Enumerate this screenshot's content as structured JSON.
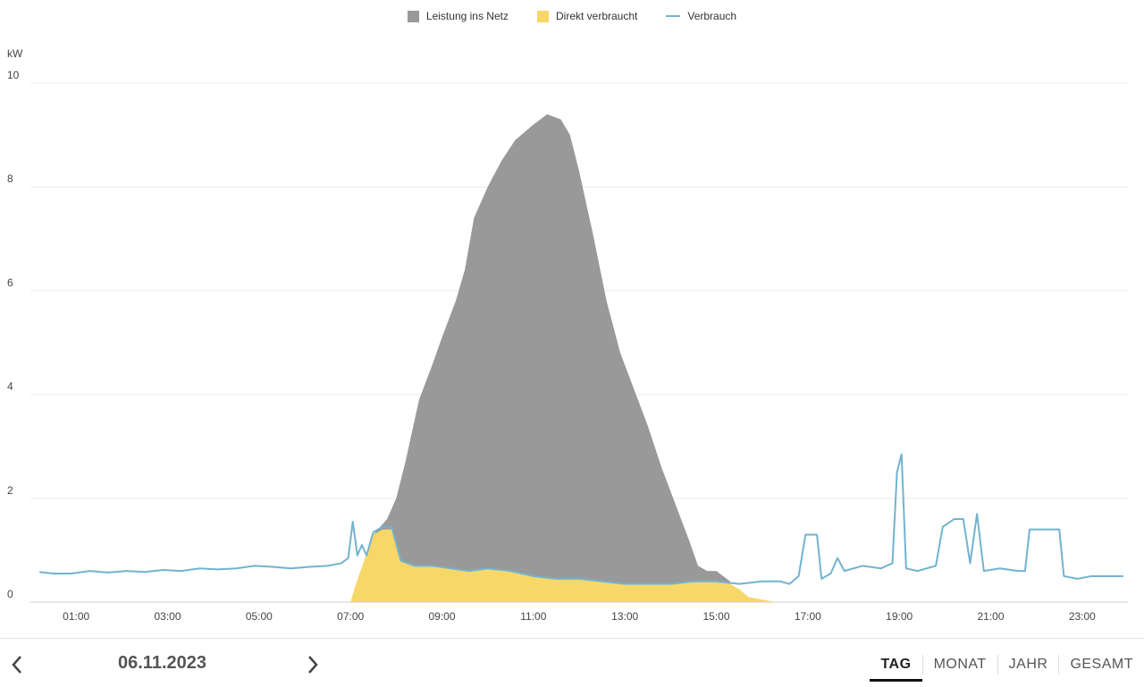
{
  "chart_data": {
    "type": "area",
    "ylabel": "kW",
    "ylim": [
      0,
      10
    ],
    "yticks": [
      "0",
      "2",
      "4",
      "6",
      "8",
      "10"
    ],
    "xlim": [
      0,
      24
    ],
    "xticks": [
      "01:00",
      "03:00",
      "05:00",
      "07:00",
      "09:00",
      "11:00",
      "13:00",
      "15:00",
      "17:00",
      "19:00",
      "21:00",
      "23:00"
    ],
    "grid": true,
    "legend_placement": "top-center",
    "series": [
      {
        "name": "Leistung ins Netz",
        "type": "area",
        "color": "#999999",
        "points": [
          [
            7.5,
            1.3
          ],
          [
            7.8,
            1.6
          ],
          [
            8.0,
            2.0
          ],
          [
            8.2,
            2.7
          ],
          [
            8.5,
            3.9
          ],
          [
            8.8,
            4.6
          ],
          [
            9.0,
            5.1
          ],
          [
            9.3,
            5.8
          ],
          [
            9.5,
            6.4
          ],
          [
            9.7,
            7.4
          ],
          [
            10.0,
            8.0
          ],
          [
            10.3,
            8.5
          ],
          [
            10.6,
            8.9
          ],
          [
            11.0,
            9.2
          ],
          [
            11.3,
            9.4
          ],
          [
            11.6,
            9.3
          ],
          [
            11.8,
            9.0
          ],
          [
            12.0,
            8.3
          ],
          [
            12.3,
            7.1
          ],
          [
            12.6,
            5.8
          ],
          [
            12.9,
            4.8
          ],
          [
            13.2,
            4.1
          ],
          [
            13.5,
            3.4
          ],
          [
            13.8,
            2.6
          ],
          [
            14.1,
            1.9
          ],
          [
            14.4,
            1.2
          ],
          [
            14.6,
            0.7
          ],
          [
            14.8,
            0.6
          ],
          [
            15.0,
            0.6
          ],
          [
            15.3,
            0.4
          ]
        ]
      },
      {
        "name": "Direkt verbraucht",
        "type": "area",
        "color": "#f7d768",
        "points": [
          [
            7.0,
            0.0
          ],
          [
            7.1,
            0.3
          ],
          [
            7.3,
            0.8
          ],
          [
            7.5,
            1.3
          ],
          [
            7.7,
            1.4
          ],
          [
            7.9,
            1.4
          ],
          [
            8.1,
            0.8
          ],
          [
            8.4,
            0.7
          ],
          [
            8.8,
            0.7
          ],
          [
            9.2,
            0.65
          ],
          [
            9.6,
            0.6
          ],
          [
            10.0,
            0.65
          ],
          [
            10.5,
            0.6
          ],
          [
            11.0,
            0.5
          ],
          [
            11.5,
            0.45
          ],
          [
            12.0,
            0.45
          ],
          [
            12.5,
            0.4
          ],
          [
            13.0,
            0.35
          ],
          [
            13.5,
            0.35
          ],
          [
            14.0,
            0.35
          ],
          [
            14.5,
            0.4
          ],
          [
            15.0,
            0.4
          ],
          [
            15.3,
            0.35
          ],
          [
            15.5,
            0.25
          ],
          [
            15.7,
            0.1
          ],
          [
            16.0,
            0.05
          ],
          [
            16.3,
            0.0
          ]
        ]
      },
      {
        "name": "Verbrauch",
        "type": "line",
        "color": "#73b3cf",
        "points": [
          [
            0.2,
            0.58
          ],
          [
            0.5,
            0.55
          ],
          [
            0.9,
            0.55
          ],
          [
            1.3,
            0.6
          ],
          [
            1.7,
            0.57
          ],
          [
            2.1,
            0.6
          ],
          [
            2.5,
            0.58
          ],
          [
            2.9,
            0.62
          ],
          [
            3.3,
            0.6
          ],
          [
            3.7,
            0.65
          ],
          [
            4.1,
            0.63
          ],
          [
            4.5,
            0.65
          ],
          [
            4.9,
            0.7
          ],
          [
            5.3,
            0.68
          ],
          [
            5.7,
            0.65
          ],
          [
            6.1,
            0.68
          ],
          [
            6.5,
            0.7
          ],
          [
            6.8,
            0.75
          ],
          [
            6.95,
            0.85
          ],
          [
            7.05,
            1.55
          ],
          [
            7.15,
            0.9
          ],
          [
            7.25,
            1.1
          ],
          [
            7.35,
            0.9
          ],
          [
            7.5,
            1.35
          ],
          [
            7.7,
            1.45
          ],
          [
            7.9,
            1.45
          ],
          [
            8.1,
            0.8
          ],
          [
            8.4,
            0.7
          ],
          [
            8.8,
            0.7
          ],
          [
            9.2,
            0.65
          ],
          [
            9.6,
            0.6
          ],
          [
            10.0,
            0.65
          ],
          [
            10.5,
            0.6
          ],
          [
            11.0,
            0.5
          ],
          [
            11.5,
            0.45
          ],
          [
            12.0,
            0.45
          ],
          [
            12.5,
            0.4
          ],
          [
            13.0,
            0.35
          ],
          [
            13.5,
            0.35
          ],
          [
            14.0,
            0.35
          ],
          [
            14.5,
            0.4
          ],
          [
            15.0,
            0.4
          ],
          [
            15.5,
            0.35
          ],
          [
            16.0,
            0.4
          ],
          [
            16.4,
            0.4
          ],
          [
            16.6,
            0.35
          ],
          [
            16.8,
            0.5
          ],
          [
            16.95,
            1.3
          ],
          [
            17.1,
            1.3
          ],
          [
            17.2,
            1.3
          ],
          [
            17.3,
            0.45
          ],
          [
            17.5,
            0.55
          ],
          [
            17.65,
            0.85
          ],
          [
            17.8,
            0.6
          ],
          [
            18.2,
            0.7
          ],
          [
            18.6,
            0.65
          ],
          [
            18.85,
            0.75
          ],
          [
            18.95,
            2.5
          ],
          [
            19.05,
            2.85
          ],
          [
            19.15,
            0.65
          ],
          [
            19.4,
            0.6
          ],
          [
            19.8,
            0.7
          ],
          [
            19.95,
            1.45
          ],
          [
            20.2,
            1.6
          ],
          [
            20.4,
            1.6
          ],
          [
            20.55,
            0.75
          ],
          [
            20.7,
            1.7
          ],
          [
            20.85,
            0.6
          ],
          [
            21.2,
            0.65
          ],
          [
            21.6,
            0.6
          ],
          [
            21.75,
            0.6
          ],
          [
            21.85,
            1.4
          ],
          [
            22.2,
            1.4
          ],
          [
            22.5,
            1.4
          ],
          [
            22.6,
            0.5
          ],
          [
            22.9,
            0.45
          ],
          [
            23.2,
            0.5
          ],
          [
            23.6,
            0.5
          ],
          [
            23.9,
            0.5
          ]
        ]
      }
    ]
  },
  "legend": {
    "items": [
      {
        "label": "Leistung ins Netz",
        "color": "#999999",
        "kind": "square"
      },
      {
        "label": "Direkt verbraucht",
        "color": "#f7d768",
        "kind": "square"
      },
      {
        "label": "Verbrauch",
        "color": "#73b3cf",
        "kind": "line"
      }
    ]
  },
  "footer": {
    "date": "06.11.2023",
    "prev_icon": "chevron-left-icon",
    "next_icon": "chevron-right-icon",
    "tabs": [
      {
        "label": "TAG",
        "active": true
      },
      {
        "label": "MONAT",
        "active": false
      },
      {
        "label": "JAHR",
        "active": false
      },
      {
        "label": "GESAMT",
        "active": false
      }
    ]
  }
}
